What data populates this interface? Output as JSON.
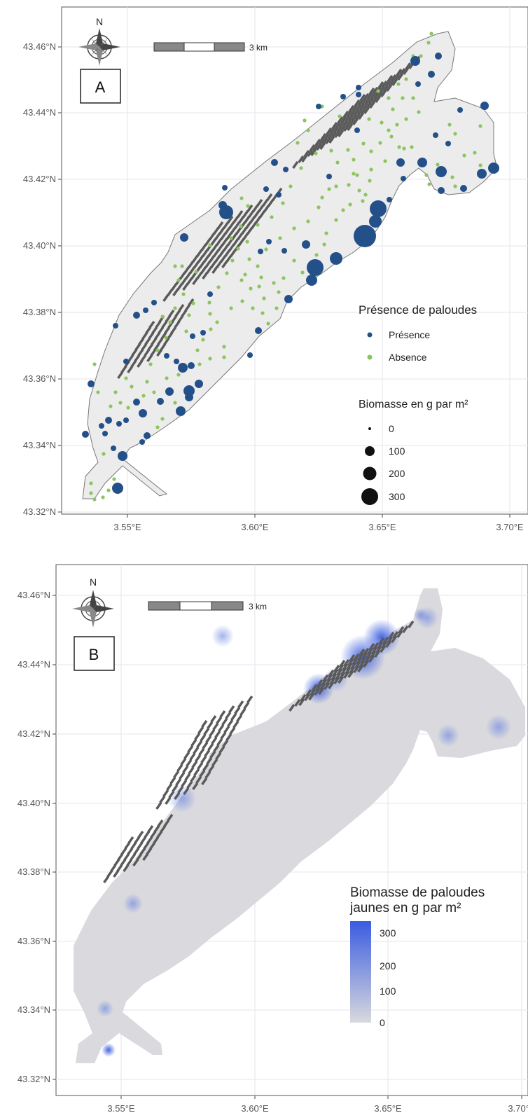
{
  "map_a": {
    "panel_label": "A",
    "north_label": "N",
    "scale_label": "3 km",
    "y_ticks": [
      "43.46°N",
      "43.44°N",
      "43.42°N",
      "43.40°N",
      "43.38°N",
      "43.36°N",
      "43.34°N",
      "43.32°N"
    ],
    "x_ticks": [
      "3.55°E",
      "3.60°E",
      "3.65°E",
      "3.70°E"
    ],
    "legend_presence_title": "Présence de paloudes",
    "legend_presence_items": [
      "Présence",
      "Absence"
    ],
    "legend_biomass_title": "Biomasse en g par m²",
    "legend_biomass_items": [
      "0",
      "100",
      "200",
      "300"
    ],
    "colors": {
      "presence": "#24508a",
      "absence": "#8cc45e",
      "lagoon": "#ececec"
    }
  },
  "map_b": {
    "panel_label": "B",
    "north_label": "N",
    "scale_label": "3 km",
    "y_ticks": [
      "43.46°N",
      "43.44°N",
      "43.42°N",
      "43.40°N",
      "43.38°N",
      "43.36°N",
      "43.34°N",
      "43.32°N"
    ],
    "x_ticks": [
      "3.55°E",
      "3.60°E",
      "3.65°E",
      "3.70°E"
    ],
    "legend_title_line1": "Biomasse de paloudes",
    "legend_title_line2": "jaunes en g par m²",
    "legend_values": [
      "300",
      "200",
      "100",
      "0"
    ],
    "colors": {
      "high": "#3a5ce0",
      "low": "#d9d9de",
      "lagoon": "#d9d9de"
    }
  }
}
